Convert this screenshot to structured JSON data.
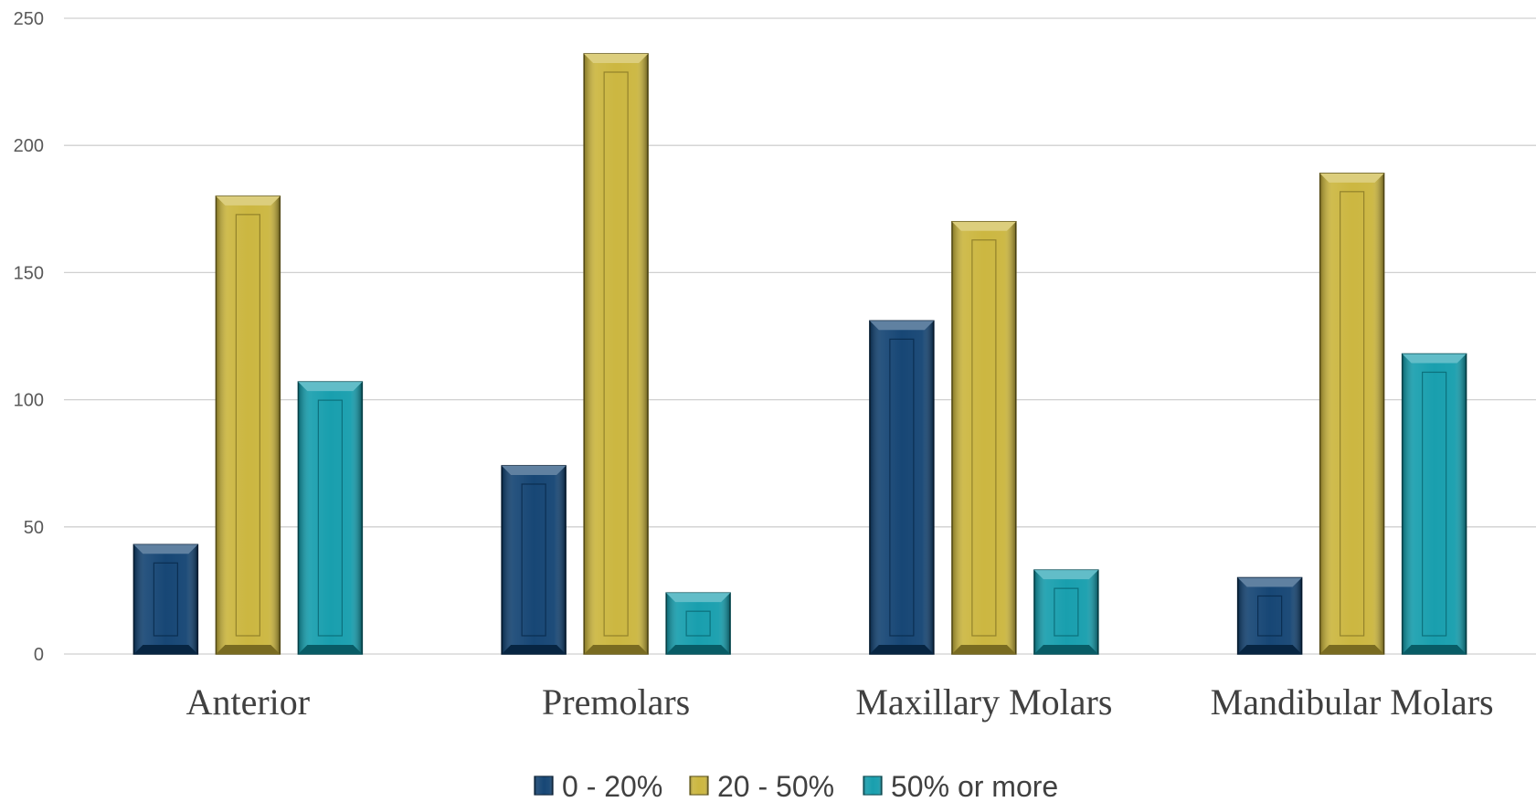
{
  "chart_data": {
    "type": "bar",
    "categories": [
      "Anterior",
      "Premolars",
      "Maxillary Molars",
      "Mandibular Molars"
    ],
    "series": [
      {
        "name": "0 - 20%",
        "color": "#0b3d6e",
        "values": [
          43,
          74,
          131,
          30
        ]
      },
      {
        "name": "20 - 50%",
        "color": "#c9b337",
        "values": [
          180,
          236,
          170,
          189
        ]
      },
      {
        "name": "50% or more",
        "color": "#0d9aaa",
        "values": [
          107,
          24,
          33,
          118
        ]
      }
    ],
    "yticks": [
      "0",
      "50",
      "100",
      "150",
      "200",
      "250"
    ],
    "ylim": [
      0,
      250
    ],
    "grid": true,
    "legend_position": "bottom",
    "title": "",
    "xlabel": "",
    "ylabel": ""
  }
}
